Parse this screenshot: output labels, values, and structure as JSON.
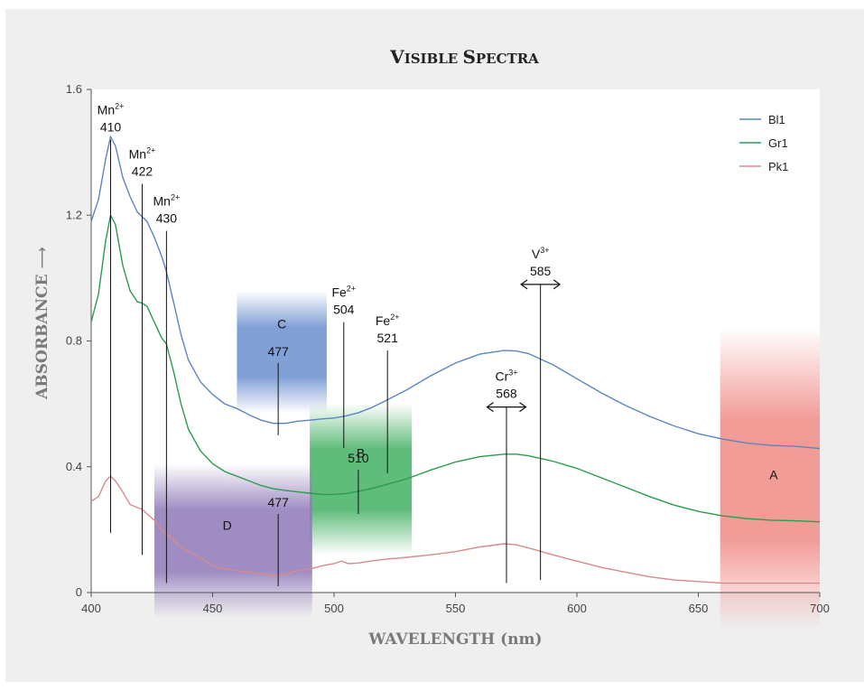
{
  "chart_data": {
    "type": "line",
    "title": "VISIBLE SPECTRA",
    "title_parts": {
      "v": "V",
      "isible": "ISIBLE",
      "s": "S",
      "pectra": "PECTRA"
    },
    "xlabel": "WAVELENGTH (nm)",
    "ylabel": "ABSORBANCE",
    "ylabel_arrow": "⟶",
    "xlim": [
      400,
      700
    ],
    "ylim": [
      0,
      1.6
    ],
    "xticks": [
      400,
      450,
      500,
      550,
      600,
      650,
      700
    ],
    "yticks": [
      {
        "value": 0,
        "label": "0"
      },
      {
        "value": 0.4,
        "label": "0.4"
      },
      {
        "value": 0.8,
        "label": "0.8"
      },
      {
        "value": 1.2,
        "label": "1.2"
      },
      {
        "value": 1.6,
        "label": "1.6"
      }
    ],
    "legend_position": "top-right",
    "series": [
      {
        "name": "Bl1",
        "color": "#5b86c2",
        "points": [
          [
            400,
            1.18
          ],
          [
            403,
            1.25
          ],
          [
            406,
            1.38
          ],
          [
            408,
            1.45
          ],
          [
            410,
            1.42
          ],
          [
            413,
            1.32
          ],
          [
            416,
            1.26
          ],
          [
            419,
            1.21
          ],
          [
            421,
            1.195
          ],
          [
            423,
            1.18
          ],
          [
            426,
            1.13
          ],
          [
            429,
            1.07
          ],
          [
            431,
            1.02
          ],
          [
            434,
            0.92
          ],
          [
            437,
            0.82
          ],
          [
            440,
            0.74
          ],
          [
            445,
            0.67
          ],
          [
            450,
            0.63
          ],
          [
            455,
            0.6
          ],
          [
            460,
            0.585
          ],
          [
            465,
            0.565
          ],
          [
            470,
            0.548
          ],
          [
            475,
            0.538
          ],
          [
            480,
            0.538
          ],
          [
            485,
            0.545
          ],
          [
            490,
            0.548
          ],
          [
            495,
            0.552
          ],
          [
            500,
            0.555
          ],
          [
            505,
            0.562
          ],
          [
            510,
            0.572
          ],
          [
            515,
            0.587
          ],
          [
            520,
            0.605
          ],
          [
            530,
            0.645
          ],
          [
            540,
            0.69
          ],
          [
            550,
            0.73
          ],
          [
            560,
            0.758
          ],
          [
            570,
            0.77
          ],
          [
            575,
            0.768
          ],
          [
            580,
            0.76
          ],
          [
            590,
            0.725
          ],
          [
            600,
            0.68
          ],
          [
            610,
            0.635
          ],
          [
            620,
            0.595
          ],
          [
            630,
            0.56
          ],
          [
            640,
            0.53
          ],
          [
            650,
            0.505
          ],
          [
            660,
            0.488
          ],
          [
            670,
            0.475
          ],
          [
            680,
            0.468
          ],
          [
            690,
            0.465
          ],
          [
            700,
            0.458
          ]
        ]
      },
      {
        "name": "Gr1",
        "color": "#2a9d4e",
        "points": [
          [
            400,
            0.86
          ],
          [
            403,
            0.95
          ],
          [
            406,
            1.12
          ],
          [
            408,
            1.2
          ],
          [
            410,
            1.17
          ],
          [
            413,
            1.04
          ],
          [
            416,
            0.96
          ],
          [
            419,
            0.925
          ],
          [
            421,
            0.92
          ],
          [
            423,
            0.91
          ],
          [
            426,
            0.86
          ],
          [
            429,
            0.81
          ],
          [
            431,
            0.79
          ],
          [
            434,
            0.7
          ],
          [
            437,
            0.6
          ],
          [
            440,
            0.52
          ],
          [
            445,
            0.45
          ],
          [
            450,
            0.41
          ],
          [
            455,
            0.385
          ],
          [
            460,
            0.37
          ],
          [
            465,
            0.355
          ],
          [
            470,
            0.34
          ],
          [
            475,
            0.33
          ],
          [
            480,
            0.325
          ],
          [
            485,
            0.32
          ],
          [
            490,
            0.316
          ],
          [
            495,
            0.312
          ],
          [
            500,
            0.312
          ],
          [
            505,
            0.315
          ],
          [
            510,
            0.322
          ],
          [
            515,
            0.33
          ],
          [
            520,
            0.34
          ],
          [
            530,
            0.362
          ],
          [
            540,
            0.39
          ],
          [
            550,
            0.415
          ],
          [
            560,
            0.432
          ],
          [
            570,
            0.44
          ],
          [
            575,
            0.44
          ],
          [
            580,
            0.435
          ],
          [
            590,
            0.418
          ],
          [
            600,
            0.395
          ],
          [
            610,
            0.365
          ],
          [
            620,
            0.335
          ],
          [
            630,
            0.305
          ],
          [
            640,
            0.278
          ],
          [
            650,
            0.258
          ],
          [
            660,
            0.244
          ],
          [
            670,
            0.235
          ],
          [
            680,
            0.23
          ],
          [
            690,
            0.228
          ],
          [
            700,
            0.225
          ]
        ]
      },
      {
        "name": "Pk1",
        "color": "#d98a8a",
        "points": [
          [
            400,
            0.29
          ],
          [
            403,
            0.305
          ],
          [
            406,
            0.355
          ],
          [
            408,
            0.37
          ],
          [
            410,
            0.355
          ],
          [
            413,
            0.32
          ],
          [
            416,
            0.28
          ],
          [
            419,
            0.27
          ],
          [
            421,
            0.265
          ],
          [
            423,
            0.25
          ],
          [
            426,
            0.23
          ],
          [
            429,
            0.2
          ],
          [
            432,
            0.18
          ],
          [
            436,
            0.15
          ],
          [
            440,
            0.13
          ],
          [
            445,
            0.11
          ],
          [
            450,
            0.085
          ],
          [
            455,
            0.075
          ],
          [
            460,
            0.07
          ],
          [
            465,
            0.065
          ],
          [
            470,
            0.06
          ],
          [
            475,
            0.055
          ],
          [
            480,
            0.058
          ],
          [
            485,
            0.07
          ],
          [
            490,
            0.075
          ],
          [
            495,
            0.085
          ],
          [
            500,
            0.092
          ],
          [
            503,
            0.1
          ],
          [
            506,
            0.092
          ],
          [
            510,
            0.094
          ],
          [
            515,
            0.1
          ],
          [
            520,
            0.105
          ],
          [
            530,
            0.112
          ],
          [
            540,
            0.12
          ],
          [
            550,
            0.13
          ],
          [
            560,
            0.145
          ],
          [
            570,
            0.155
          ],
          [
            575,
            0.152
          ],
          [
            580,
            0.142
          ],
          [
            590,
            0.12
          ],
          [
            600,
            0.1
          ],
          [
            610,
            0.08
          ],
          [
            620,
            0.065
          ],
          [
            630,
            0.05
          ],
          [
            640,
            0.04
          ],
          [
            650,
            0.035
          ],
          [
            660,
            0.03
          ],
          [
            670,
            0.03
          ],
          [
            680,
            0.03
          ],
          [
            690,
            0.03
          ],
          [
            700,
            0.03
          ]
        ]
      }
    ],
    "bands": [
      {
        "label": "C",
        "value": "477",
        "x": [
          460,
          497
        ],
        "y": [
          0.57,
          0.96
        ],
        "color": "#6a8fcf"
      },
      {
        "label": "B",
        "value": "510",
        "x": [
          490,
          532
        ],
        "y": [
          0.12,
          0.6
        ],
        "color": "#44b063"
      },
      {
        "label": "D",
        "value": "477",
        "x": [
          426,
          491
        ],
        "y": [
          -0.08,
          0.41
        ],
        "color": "#8e78b8"
      },
      {
        "label": "A",
        "value": "",
        "x": [
          659,
          700
        ],
        "y": [
          -0.12,
          0.84
        ],
        "color": "#f08a86"
      }
    ],
    "annotations": [
      {
        "ion": "Mn",
        "charge": "2+",
        "value": "410",
        "x": 408,
        "label_y": 1.44,
        "line": [
          0.19,
          1.44
        ]
      },
      {
        "ion": "Mn",
        "charge": "2+",
        "value": "422",
        "x": 421,
        "label_y": 1.3,
        "line": [
          0.12,
          1.3
        ]
      },
      {
        "ion": "Mn",
        "charge": "2+",
        "value": "430",
        "x": 431,
        "label_y": 1.15,
        "line": [
          0.03,
          1.15
        ]
      },
      {
        "ion": "Fe",
        "charge": "2+",
        "value": "504",
        "x": 504,
        "label_y": 0.86,
        "line": [
          0.46,
          0.86
        ]
      },
      {
        "ion": "Fe",
        "charge": "2+",
        "value": "521",
        "x": 522,
        "label_y": 0.77,
        "line": [
          0.38,
          0.77
        ]
      },
      {
        "ion": "V",
        "charge": "3+",
        "value": "585",
        "x": 585,
        "label_y": 0.98,
        "line": [
          0.04,
          0.98
        ],
        "arrow_half_width": 8
      },
      {
        "ion": "Cr",
        "charge": "3+",
        "value": "568",
        "x": 571,
        "label_y": 0.59,
        "line": [
          0.03,
          0.59
        ],
        "arrow_half_width": 8
      }
    ],
    "band_value_labels": [
      {
        "text": "477",
        "x": 477,
        "label_y": 0.73,
        "line": [
          0.5,
          0.73
        ],
        "band": "C"
      },
      {
        "text": "510",
        "x": 510,
        "label_y": 0.39,
        "line": [
          0.25,
          0.39
        ],
        "band": "B"
      },
      {
        "text": "477",
        "x": 477,
        "label_y": 0.25,
        "line": [
          0.02,
          0.25
        ],
        "band": "D"
      }
    ]
  }
}
